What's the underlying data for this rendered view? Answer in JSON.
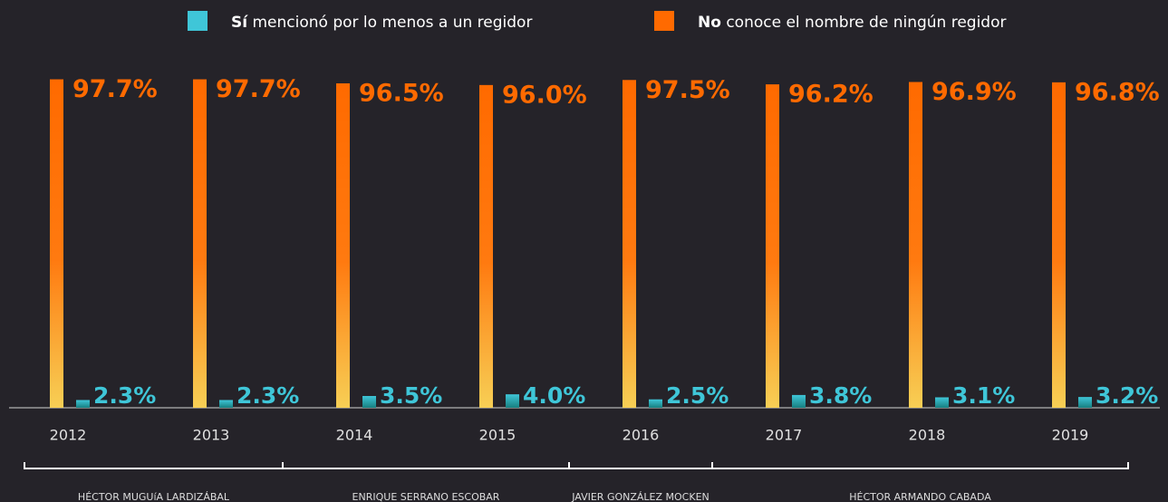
{
  "chart_data": {
    "type": "bar",
    "categories": [
      "2012",
      "2013",
      "2014",
      "2015",
      "2016",
      "2017",
      "2018",
      "2019"
    ],
    "series": [
      {
        "name": "No conoce el nombre de ningún regidor",
        "color": "#ff6a00",
        "values": [
          97.7,
          97.7,
          96.5,
          96.0,
          97.5,
          96.2,
          96.9,
          96.8
        ],
        "value_labels": [
          "97.7%",
          "97.7%",
          "96.5%",
          "96.0%",
          "97.5%",
          "96.2%",
          "96.9%",
          "96.8%"
        ]
      },
      {
        "name": "Sí mencionó por lo menos a un regidor",
        "color": "#3fc6d8",
        "values": [
          2.3,
          2.3,
          3.5,
          4.0,
          2.5,
          3.8,
          3.1,
          3.2
        ],
        "value_labels": [
          "2.3%",
          "2.3%",
          "3.5%",
          "4.0%",
          "2.5%",
          "3.8%",
          "3.1%",
          "3.2%"
        ]
      }
    ],
    "ylim": [
      0,
      100
    ],
    "periods": [
      {
        "label": "HÉCTOR MUGUíA LARDIZÁBAL",
        "years": [
          "2012",
          "2013"
        ]
      },
      {
        "label": "ENRIQUE SERRANO ESCOBAR",
        "years": [
          "2014",
          "2015"
        ]
      },
      {
        "label": "JAVIER GONZÁLEZ MOCKEN",
        "years": [
          "2016"
        ]
      },
      {
        "label": "HÉCTOR ARMANDO CABADA",
        "years": [
          "2017",
          "2018",
          "2019"
        ]
      }
    ]
  }
}
